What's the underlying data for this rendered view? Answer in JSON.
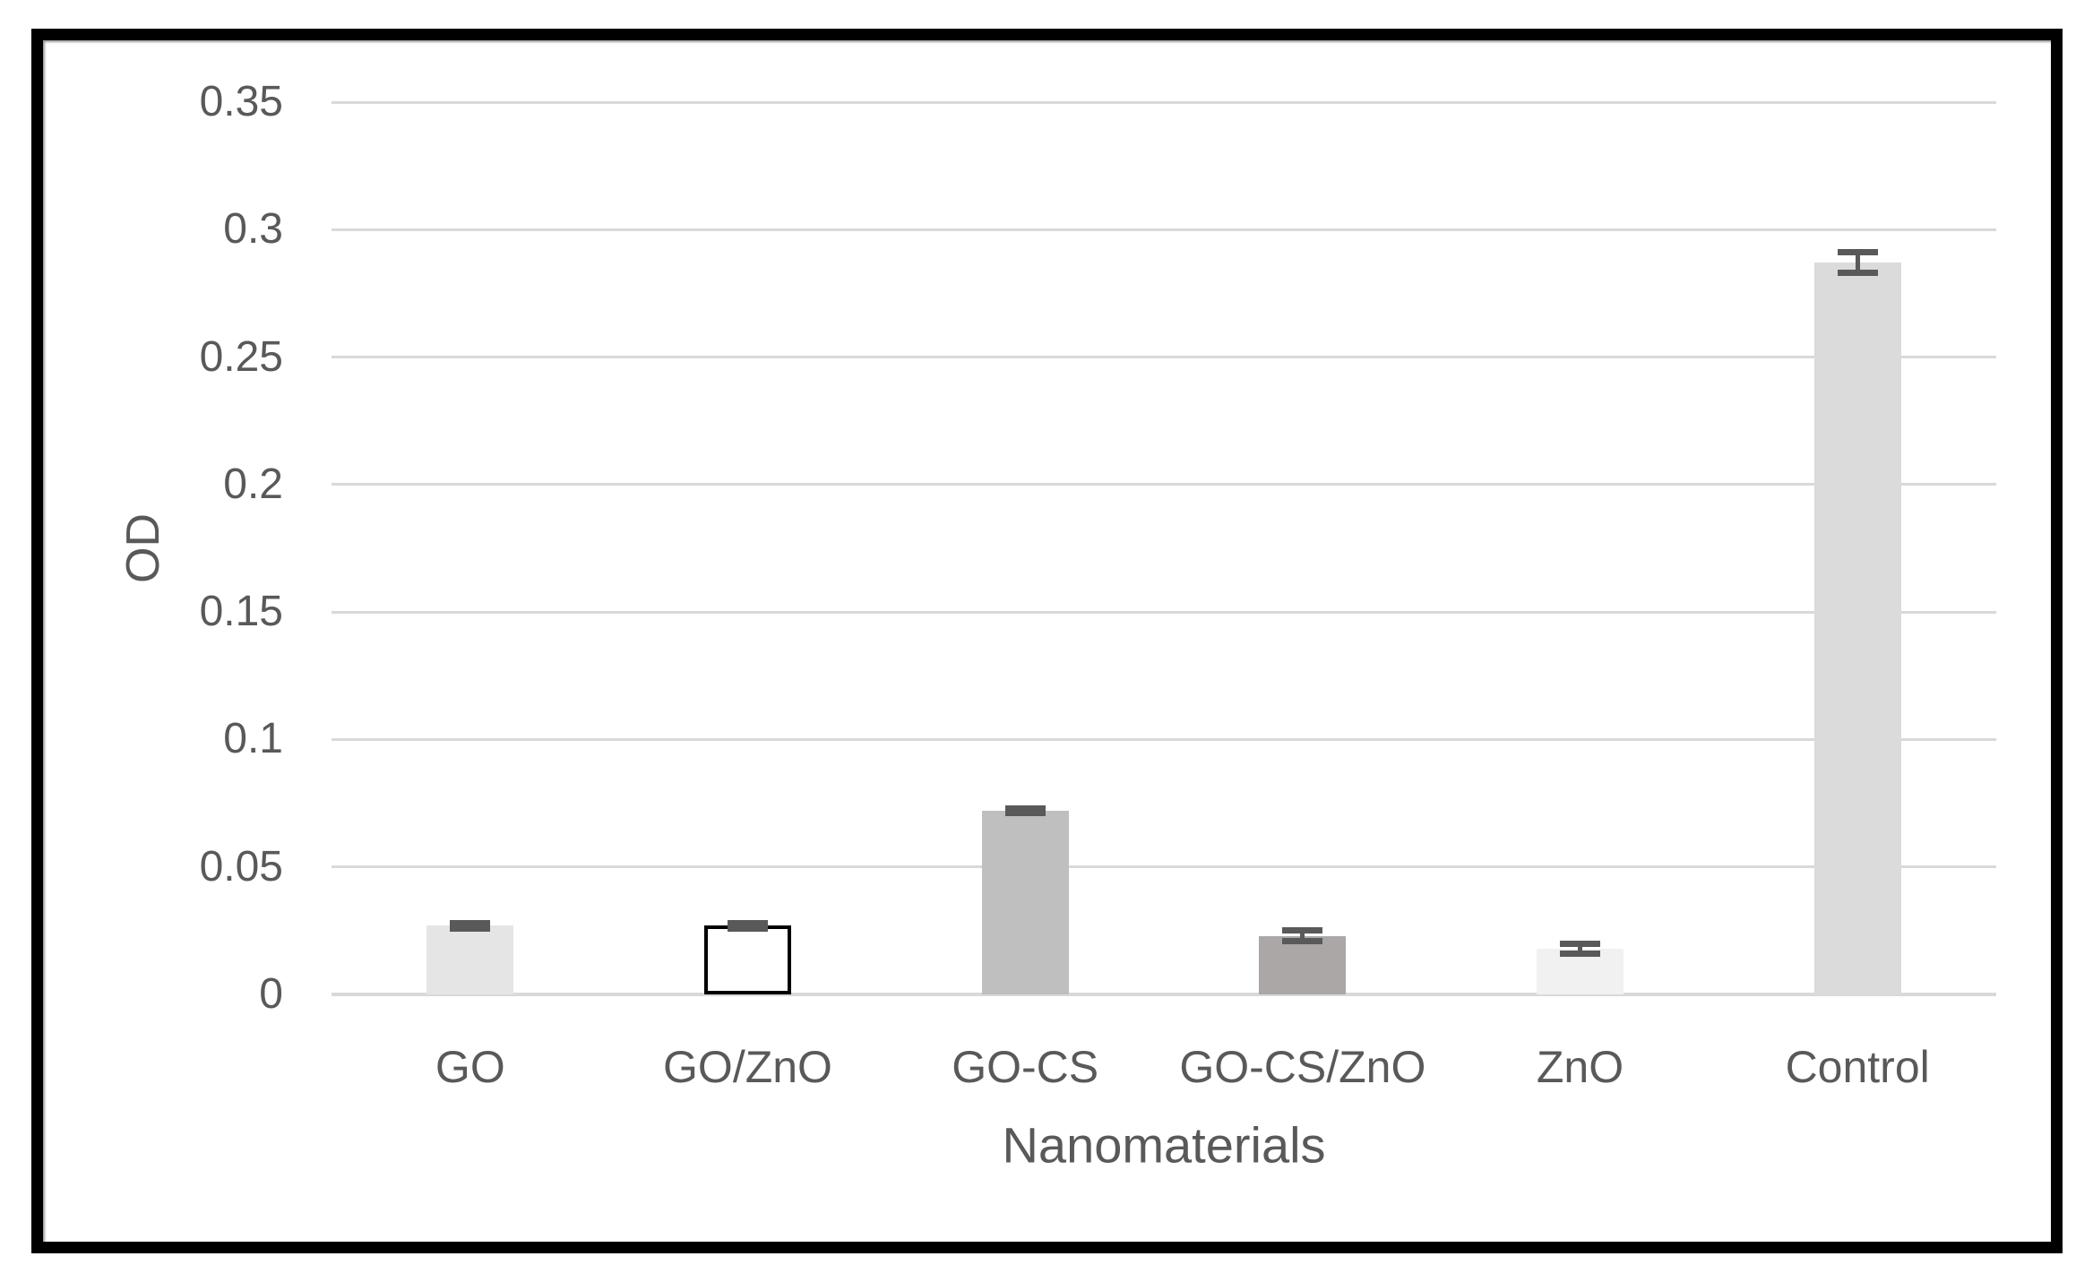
{
  "chart_data": {
    "type": "bar",
    "title": "",
    "categories": [
      "GO",
      "GO/ZnO",
      "GO-CS",
      "GO-CS/ZnO",
      "ZnO",
      "Control"
    ],
    "values": [
      0.027,
      0.027,
      0.072,
      0.023,
      0.018,
      0.287
    ],
    "error_bars": [
      0.001,
      0.001,
      0.001,
      0.002,
      0.002,
      0.004
    ],
    "xlabel": "Nanomaterials",
    "ylabel": "OD",
    "ylim": [
      0,
      0.35
    ],
    "ytick_step": 0.05,
    "ytick_labels": [
      "0",
      "0.05",
      "0.1",
      "0.15",
      "0.2",
      "0.25",
      "0.3",
      "0.35"
    ],
    "grid": true,
    "legend": "none",
    "bar_styles": [
      {
        "fill": "#e6e5e5",
        "border": "none"
      },
      {
        "fill": "#ffffff",
        "border": "#000000"
      },
      {
        "fill": "#bfbfbf",
        "border": "none"
      },
      {
        "fill": "#aba7a7",
        "border": "none"
      },
      {
        "fill": "#f2f1f1",
        "border": "none"
      },
      {
        "fill": "#dbdbdb",
        "border": "none"
      }
    ],
    "colors": {
      "gridline": "#d9d9d9",
      "axis_text": "#595959",
      "error_bar": "#595959",
      "frame_border": "#000000",
      "background": "#ffffff"
    }
  }
}
